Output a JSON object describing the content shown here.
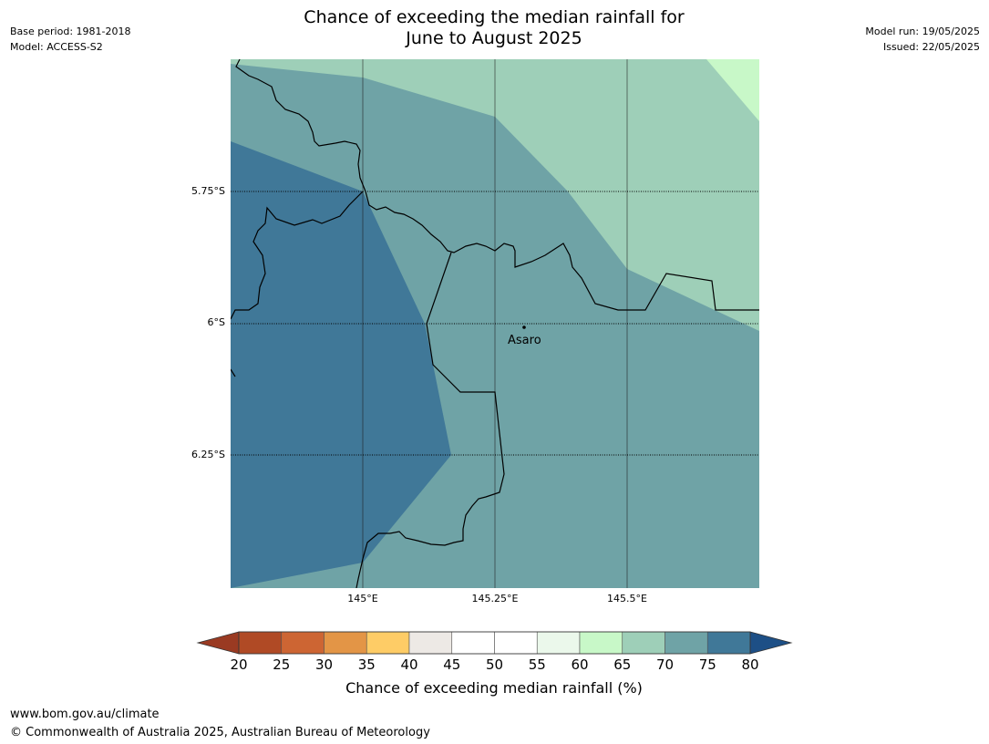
{
  "header": {
    "title_line1": "Chance of exceeding the median rainfall for",
    "title_line2": "June to August 2025",
    "base_period": "Base period: 1981-2018",
    "model": "Model: ACCESS-S2",
    "model_run": "Model run: 19/05/2025",
    "issued": "Issued: 22/05/2025"
  },
  "map": {
    "lat_labels": [
      "5.75°S",
      "6°S",
      "6.25°S"
    ],
    "lon_labels": [
      "145°E",
      "145.25°E",
      "145.5°E"
    ],
    "place": "Asaro",
    "zone_colors": {
      "65_70": "#9ecfb8",
      "70_75": "#6fa3a6",
      "75_80": "#407898",
      "60_65": "#c8f8c8"
    }
  },
  "colorbar": {
    "ticks": [
      "20",
      "25",
      "30",
      "35",
      "40",
      "45",
      "50",
      "55",
      "60",
      "65",
      "70",
      "75",
      "80"
    ],
    "colors": [
      "#b04a25",
      "#cd6533",
      "#e39546",
      "#fecc66",
      "#ede9e5",
      "#ffffff",
      "#ffffff",
      "#ebf8eb",
      "#c8f8c8",
      "#9ecfb8",
      "#6fa3a6",
      "#407898"
    ],
    "under_color": "#9a3a22",
    "over_color": "#1d4f86",
    "label": "Chance of exceeding median rainfall (%)"
  },
  "footer": {
    "url": "www.bom.gov.au/climate",
    "copyright": "© Commonwealth of Australia 2025, Australian Bureau of Meteorology"
  }
}
